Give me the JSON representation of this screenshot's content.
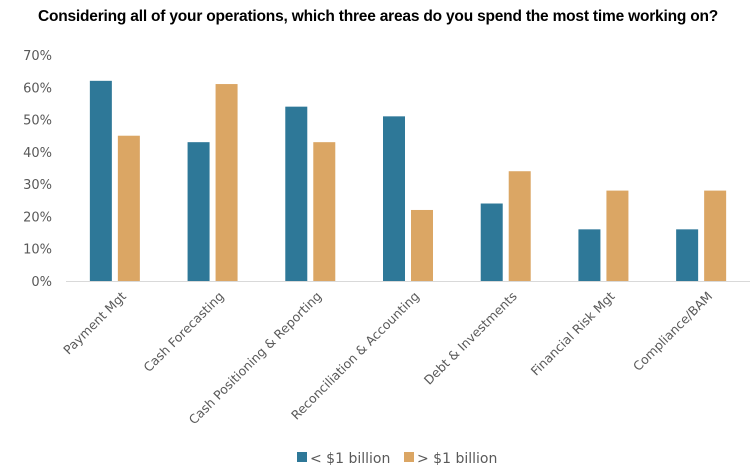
{
  "chart_data": {
    "type": "bar",
    "title": "Considering all of your operations, which three areas do you spend the most time working on?",
    "xlabel": "",
    "ylabel": "",
    "ylim": [
      0,
      70
    ],
    "yticks": [
      0,
      10,
      20,
      30,
      40,
      50,
      60,
      70
    ],
    "ytick_labels": [
      "0%",
      "10%",
      "20%",
      "30%",
      "40%",
      "50%",
      "60%",
      "70%"
    ],
    "grid": false,
    "legend_position": "bottom",
    "categories": [
      "Payment Mgt",
      "Cash Forecasting",
      "Cash Positioning & Reporting",
      "Reconciliation & Accounting",
      "Debt & Investments",
      "Financial Risk Mgt",
      "Compliance/BAM"
    ],
    "series": [
      {
        "name": "< $1 billion",
        "color": "#2E7898",
        "values": [
          62,
          43,
          54,
          51,
          24,
          16,
          16
        ]
      },
      {
        "name": "> $1 billion",
        "color": "#DBA664",
        "values": [
          45,
          61,
          43,
          22,
          34,
          28,
          28
        ]
      }
    ]
  }
}
